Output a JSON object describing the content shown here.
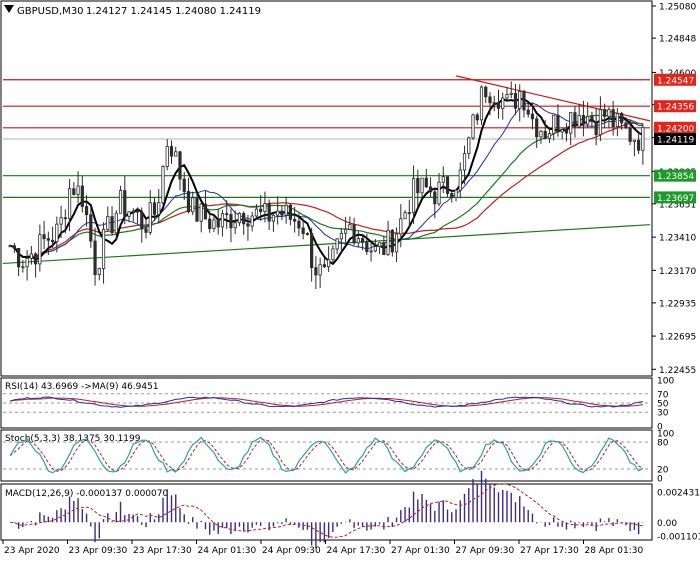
{
  "header": {
    "symbol": "GBPUSD,M30",
    "ohlc": "1.24127 1.24145 1.24080 1.24119"
  },
  "colors": {
    "candle_up": "#2c2c2c",
    "ma_fast": "#000000",
    "ma_blue": "#1f2fb5",
    "ma_red": "#c41e1e",
    "ma_green": "#1a7a1a",
    "level_red": "#c81818",
    "level_green": "#1a7a1a",
    "badge_red": "#e2241a",
    "badge_green": "#1e9a2a",
    "badge_black": "#000000",
    "rsi_line": "#1f2fb5",
    "rsi_ma": "#c41e1e",
    "stoch_main": "#2aa3a3",
    "stoch_signal": "#c41e1e",
    "macd_hist": "#3a2a8a",
    "macd_signal": "#c41e1e"
  },
  "chart_data": [
    {
      "type": "candlestick",
      "title": "GBPUSD,M30",
      "ylim": [
        1.2245,
        1.2508
      ],
      "y_ticks": [
        "1.25080",
        "1.24848",
        "1.24600",
        "1.24367",
        "1.24129",
        "1.23885",
        "1.23651",
        "1.23410",
        "1.23170",
        "1.22935",
        "1.22695",
        "1.22455"
      ],
      "x_ticks": [
        "23 Apr 2020",
        "23 Apr 09:30",
        "23 Apr 17:30",
        "24 Apr 01:30",
        "24 Apr 09:30",
        "24 Apr 17:30",
        "27 Apr 01:30",
        "27 Apr 09:30",
        "27 Apr 17:30",
        "28 Apr 01:30"
      ],
      "close_path": [
        1.2335,
        1.2325,
        1.233,
        1.234,
        1.2345,
        1.238,
        1.237,
        1.232,
        1.2345,
        1.2365,
        1.236,
        1.235,
        1.236,
        1.2415,
        1.2385,
        1.236,
        1.2355,
        1.235,
        1.2355,
        1.236,
        1.2358,
        1.2355,
        1.236,
        1.2355,
        1.2352,
        1.232,
        1.231,
        1.2335,
        1.235,
        1.234,
        1.233,
        1.2335,
        1.235,
        1.2372,
        1.2376,
        1.2373,
        1.2378,
        1.2385,
        1.242,
        1.245,
        1.2446,
        1.2435,
        1.2448,
        1.2425,
        1.2418,
        1.2425,
        1.2428,
        1.2432,
        1.2425,
        1.243,
        1.242,
        1.2415,
        1.2412
      ],
      "levels": [
        {
          "value": "1.24547",
          "role": "resistance"
        },
        {
          "value": "1.24356",
          "role": "resistance"
        },
        {
          "value": "1.24200",
          "role": "resistance"
        },
        {
          "value": "1.24119",
          "role": "current"
        },
        {
          "value": "1.23854",
          "role": "support"
        },
        {
          "value": "1.23697",
          "role": "support"
        }
      ]
    },
    {
      "type": "line",
      "title": "RSI(14) 43.6969 ->MA(9) 46.9451",
      "ylim": [
        0,
        100
      ],
      "y_ticks": [
        "100",
        "70",
        "50",
        "30",
        "0"
      ]
    },
    {
      "type": "line",
      "title": "Stoch(5,3,3) 38.1375 30.1199",
      "ylim": [
        0,
        100
      ],
      "y_ticks": [
        "100",
        "80",
        "20",
        "0"
      ]
    },
    {
      "type": "bar",
      "title": "MACD(12,26,9) -0.000137 0.000070",
      "y_ticks": [
        "0.002431",
        "0.00",
        "-0.001101"
      ]
    }
  ]
}
